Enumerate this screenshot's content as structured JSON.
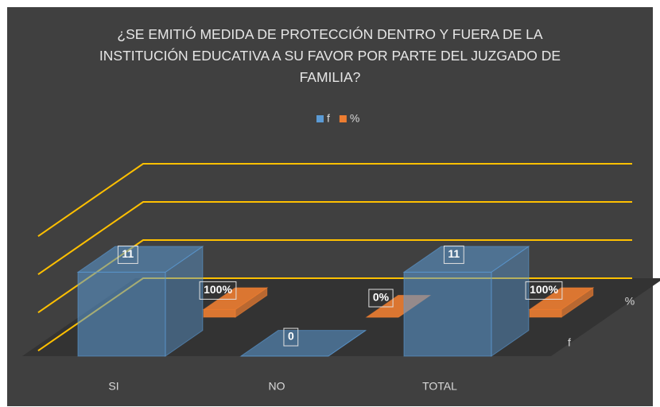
{
  "chart_data": {
    "type": "bar3d",
    "title": "¿SE EMITIÓ MEDIDA DE PROTECCIÓN DENTRO Y FUERA DE LA INSTITUCIÓN EDUCATIVA A SU FAVOR POR PARTE DEL JUZGADO DE FAMILIA?",
    "categories": [
      "SI",
      "NO",
      "TOTAL"
    ],
    "series": [
      {
        "name": "f",
        "color": "#5b9bd5",
        "values": [
          11,
          0,
          11
        ]
      },
      {
        "name": "%",
        "color": "#ed7d31",
        "values": [
          1,
          0,
          1
        ],
        "value_labels": [
          "100%",
          "0%",
          "100%"
        ]
      }
    ],
    "ylim": [
      0,
      15
    ],
    "yticks": [
      0,
      5,
      10,
      15
    ],
    "grid": true,
    "grid_color": "#ffc000",
    "legend": "top"
  }
}
